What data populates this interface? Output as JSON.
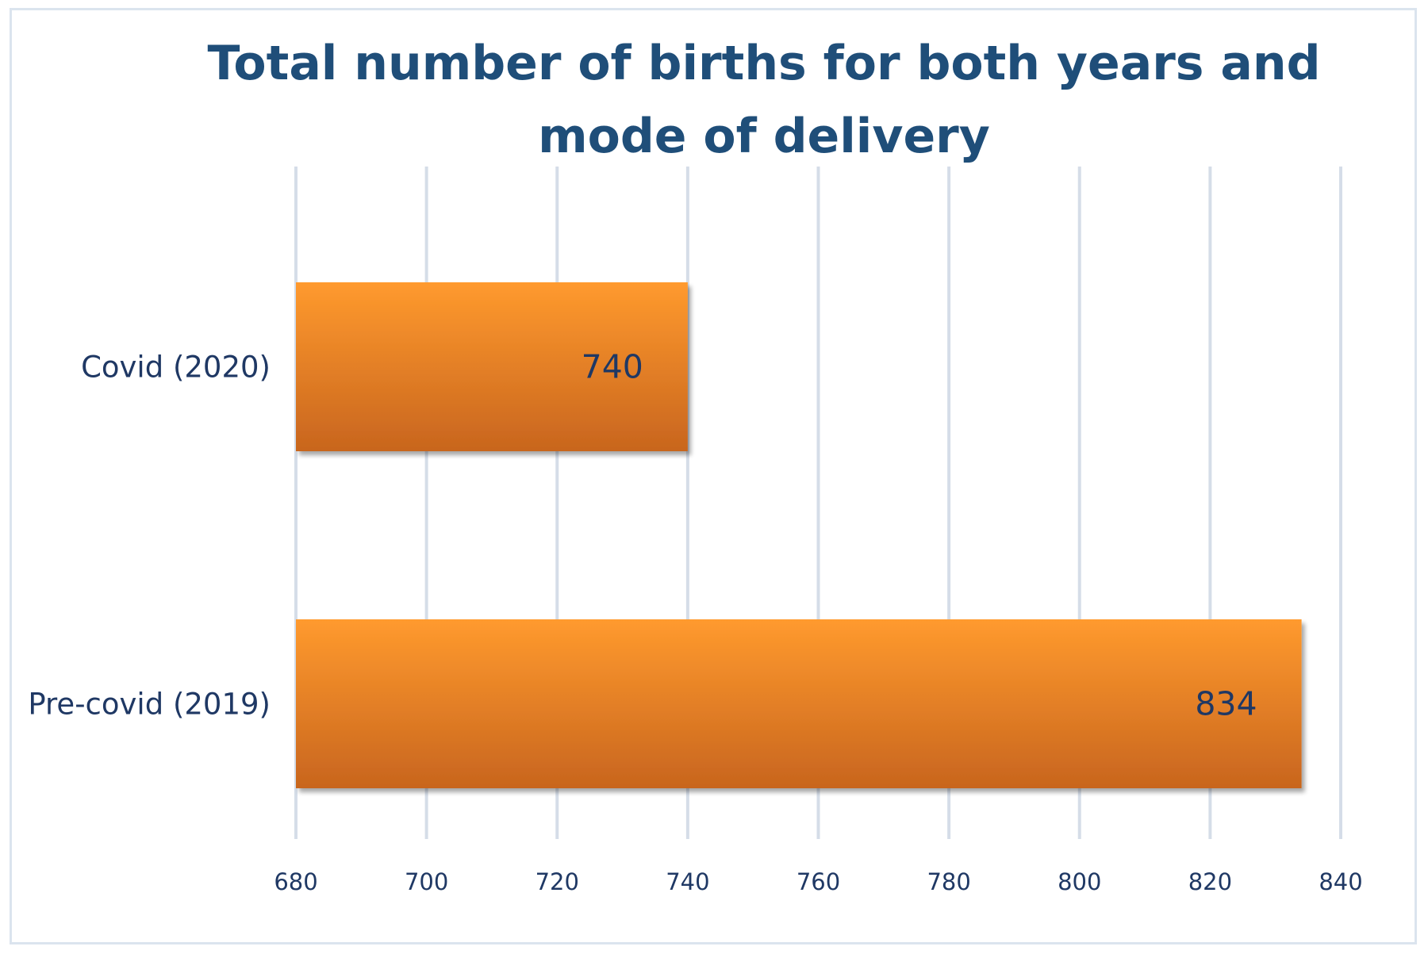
{
  "chart_data": {
    "type": "bar",
    "orientation": "horizontal",
    "title": "Total number of births for both years and mode of delivery",
    "title_lines": [
      "Total number of births for both years and",
      "mode of delivery"
    ],
    "categories": [
      "Covid (2020)",
      "Pre-covid (2019)"
    ],
    "values": [
      740,
      834
    ],
    "data_labels": [
      "740",
      "834"
    ],
    "xlim": [
      680,
      840
    ],
    "xticks": [
      680,
      700,
      720,
      740,
      760,
      780,
      800,
      820,
      840
    ],
    "xtick_labels": [
      "680",
      "700",
      "720",
      "740",
      "760",
      "780",
      "800",
      "820",
      "840"
    ],
    "xlabel": "",
    "ylabel": "",
    "grid": "vertical",
    "legend": "none",
    "colors": {
      "bar_top": "#ff9a2e",
      "bar_bottom": "#c8651e",
      "title": "#1f4e79",
      "text": "#1f3864",
      "grid": "#d5dde8",
      "border": "#dbe4ee"
    }
  }
}
